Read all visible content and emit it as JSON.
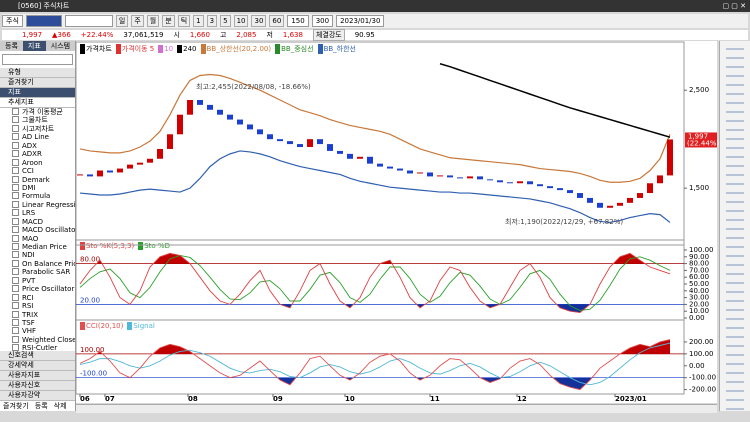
{
  "window": {
    "title": "[0560] 주식차트"
  },
  "toolbar": {
    "market": "주식",
    "periods": [
      "일",
      "주",
      "월",
      "분",
      "틱"
    ],
    "steps": [
      "1",
      "3",
      "5",
      "10",
      "30",
      "60"
    ],
    "count": "150",
    "count2": "300",
    "date": "2023/01/30"
  },
  "quote": {
    "price": "1,997",
    "change": "▲366",
    "rate": "+22.44%",
    "volume": "37,061,519",
    "open_label": "시",
    "open": "1,660",
    "high_label": "고",
    "high": "2,085",
    "low_label": "저",
    "low": "1,638",
    "strength_label": "체결강도",
    "strength": "90.95"
  },
  "left_panel": {
    "tabs": [
      "등록",
      "지표",
      "시스템"
    ],
    "groups_top": [
      "유형",
      "즐겨찾기",
      "지표"
    ],
    "category": "추세지표",
    "items": [
      "가격 이동평균",
      "그물차트",
      "시고저차트",
      "AD Line",
      "ADX",
      "ADXR",
      "Aroon",
      "CCI",
      "Demark",
      "DMI",
      "Formula",
      "Linear Regression",
      "LRS",
      "MACD",
      "MACD Oscillator",
      "MAO",
      "Median Price",
      "NDI",
      "On Balance Price",
      "Parabolic SAR",
      "PVT",
      "Price Oscillator",
      "RCI",
      "RSI",
      "TRIX",
      "TSF",
      "VHF",
      "Weighted Close",
      "RSI-Cutler"
    ],
    "groups_bottom": [
      "신호검색",
      "강세약세",
      "사용자지표",
      "사용자신호",
      "사용자강약"
    ],
    "footer": [
      "즐겨찾기",
      "등록",
      "삭제"
    ]
  },
  "chart_data": [
    {
      "type": "candlestick",
      "ylim": [
        940,
        2890
      ],
      "yticks": [
        {
          "value": 2500,
          "label": "2,500"
        },
        {
          "value": 1500,
          "label": "1,500"
        }
      ],
      "last_rate_label": "(22.44%)",
      "series": [
        {
          "name": "가격차트",
          "color": "#d00000",
          "values": [
            1640,
            1620,
            1680,
            1660,
            1700,
            1740,
            1760,
            1800,
            1900,
            2050,
            2250,
            2400,
            2350,
            2300,
            2250,
            2200,
            2150,
            2100,
            2050,
            2000,
            1980,
            1950,
            1920,
            2000,
            1950,
            1880,
            1850,
            1800,
            1820,
            1750,
            1720,
            1700,
            1680,
            1650,
            1660,
            1620,
            1630,
            1610,
            1600,
            1620,
            1590,
            1580,
            1560,
            1550,
            1570,
            1540,
            1520,
            1500,
            1480,
            1450,
            1400,
            1350,
            1300,
            1320,
            1350,
            1400,
            1450,
            1550,
            1630,
            1997
          ]
        },
        {
          "name": "240",
          "color": "#000000",
          "values": [
            null,
            null,
            null,
            null,
            null,
            null,
            null,
            null,
            null,
            null,
            null,
            null,
            null,
            null,
            null,
            null,
            null,
            null,
            null,
            null,
            null,
            null,
            null,
            null,
            null,
            null,
            null,
            null,
            null,
            null,
            null,
            null,
            null,
            null,
            null,
            null,
            2770,
            2740,
            2705,
            2670,
            2635,
            2600,
            2565,
            2530,
            2495,
            2460,
            2425,
            2390,
            2355,
            2320,
            2290,
            2260,
            2230,
            2200,
            2170,
            2140,
            2110,
            2080,
            2050,
            2020
          ]
        },
        {
          "name": "BB_상한선(20,2.00)",
          "color": "#c8783a",
          "values": [
            1900,
            1880,
            1870,
            1860,
            1860,
            1880,
            1920,
            1980,
            2080,
            2250,
            2450,
            2600,
            2650,
            2660,
            2650,
            2620,
            2580,
            2540,
            2500,
            2450,
            2400,
            2350,
            2300,
            2270,
            2240,
            2200,
            2170,
            2140,
            2120,
            2100,
            2080,
            2050,
            2000,
            1950,
            1900,
            1870,
            1840,
            1810,
            1800,
            1790,
            1780,
            1770,
            1760,
            1750,
            1740,
            1720,
            1700,
            1690,
            1680,
            1670,
            1650,
            1620,
            1580,
            1560,
            1560,
            1570,
            1600,
            1680,
            1800,
            2050
          ]
        },
        {
          "name": "BB_하한선",
          "color": "#2f5fb0",
          "values": [
            1450,
            1440,
            1430,
            1430,
            1440,
            1460,
            1480,
            1490,
            1480,
            1470,
            1460,
            1500,
            1600,
            1720,
            1800,
            1850,
            1880,
            1870,
            1850,
            1820,
            1780,
            1750,
            1720,
            1700,
            1680,
            1660,
            1640,
            1600,
            1570,
            1550,
            1530,
            1510,
            1500,
            1490,
            1480,
            1470,
            1460,
            1460,
            1450,
            1450,
            1440,
            1430,
            1420,
            1410,
            1400,
            1390,
            1370,
            1350,
            1320,
            1290,
            1250,
            1200,
            1160,
            1150,
            1170,
            1200,
            1220,
            1240,
            1230,
            1150
          ]
        }
      ],
      "legend_extra": [
        {
          "name": "가격이동 5",
          "color": "#e03030"
        },
        {
          "name": "10",
          "color": "#d070d0"
        },
        {
          "name": "BB_중심선",
          "color": "#2a8a2a"
        }
      ],
      "annotations": [
        "최고:2,455(2022/08/08, -18.66%)",
        "최저:1,190(2022/12/29, +67.82%)"
      ]
    },
    {
      "type": "line",
      "ylim": [
        0,
        100
      ],
      "yticks": [
        {
          "value": 100,
          "label": "100.00"
        },
        {
          "value": 90,
          "label": "90.00"
        },
        {
          "value": 80,
          "label": "80.00"
        },
        {
          "value": 70,
          "label": "70.00"
        },
        {
          "value": 60,
          "label": "60.00"
        },
        {
          "value": 50,
          "label": "50.00"
        },
        {
          "value": 40,
          "label": "40.00"
        },
        {
          "value": 30,
          "label": "30.00"
        },
        {
          "value": 20,
          "label": "20.00"
        },
        {
          "value": 10,
          "label": "10.00"
        },
        {
          "value": 0,
          "label": "0.00"
        }
      ],
      "levels": [
        {
          "value": 80,
          "label": "80.00"
        },
        {
          "value": 20,
          "label": "20.00"
        }
      ],
      "fill_above": "#c00000",
      "fill_below": "#14309a",
      "series": [
        {
          "name": "Sto %K(5,3,3)",
          "color": "#e04040",
          "values": [
            50,
            70,
            85,
            60,
            30,
            20,
            40,
            75,
            90,
            95,
            92,
            80,
            60,
            40,
            25,
            20,
            35,
            55,
            70,
            40,
            20,
            15,
            40,
            70,
            80,
            50,
            25,
            15,
            30,
            60,
            80,
            85,
            60,
            30,
            15,
            25,
            55,
            75,
            70,
            45,
            25,
            15,
            20,
            45,
            70,
            80,
            60,
            30,
            15,
            10,
            8,
            20,
            50,
            75,
            90,
            95,
            85,
            75,
            70,
            65
          ]
        },
        {
          "name": "Sto %D",
          "color": "#2aa02a",
          "values": [
            45,
            58,
            68,
            72,
            58,
            37,
            30,
            45,
            68,
            87,
            92,
            89,
            77,
            60,
            42,
            28,
            27,
            37,
            53,
            55,
            43,
            25,
            25,
            42,
            63,
            67,
            52,
            30,
            23,
            35,
            57,
            75,
            75,
            58,
            35,
            23,
            32,
            52,
            67,
            63,
            47,
            28,
            20,
            27,
            45,
            65,
            70,
            57,
            35,
            18,
            11,
            13,
            26,
            48,
            72,
            87,
            90,
            85,
            77,
            70
          ]
        }
      ]
    },
    {
      "type": "line",
      "ylim": [
        -220,
        300
      ],
      "yticks": [
        {
          "value": 200,
          "label": "200.00"
        },
        {
          "value": 100,
          "label": "100.00"
        },
        {
          "value": 0,
          "label": "0.00"
        },
        {
          "value": -100,
          "label": "-100.00"
        },
        {
          "value": -200,
          "label": "-200.00"
        }
      ],
      "levels": [
        {
          "value": 100,
          "label": "100.00"
        },
        {
          "value": -100,
          "label": "-100.00"
        }
      ],
      "fill_above": "#c00000",
      "fill_below": "#14309a",
      "xticks": [
        {
          "value": 0,
          "label": "06"
        },
        {
          "value": 2.5,
          "label": "07"
        },
        {
          "value": 10.8,
          "label": "08"
        },
        {
          "value": 19.3,
          "label": "09"
        },
        {
          "value": 26.5,
          "label": "10"
        },
        {
          "value": 35,
          "label": "11"
        },
        {
          "value": 43.7,
          "label": "12"
        },
        {
          "value": 53.5,
          "label": "2023/01"
        }
      ],
      "series": [
        {
          "name": "CCI(20,10)",
          "color": "#e05050",
          "values": [
            20,
            60,
            120,
            40,
            -60,
            -100,
            -20,
            80,
            150,
            180,
            160,
            120,
            60,
            0,
            -60,
            -100,
            -80,
            -20,
            40,
            -40,
            -120,
            -160,
            -60,
            60,
            80,
            0,
            -80,
            -120,
            -60,
            30,
            80,
            100,
            40,
            -60,
            -120,
            -80,
            0,
            60,
            50,
            -20,
            -100,
            -140,
            -110,
            -20,
            40,
            60,
            10,
            -80,
            -150,
            -180,
            -200,
            -120,
            -20,
            40,
            100,
            150,
            180,
            160,
            200,
            220
          ]
        },
        {
          "name": "Signal",
          "color": "#50b8d8",
          "values": [
            10,
            30,
            60,
            60,
            35,
            0,
            -20,
            0,
            40,
            90,
            120,
            130,
            110,
            80,
            30,
            -20,
            -50,
            -60,
            -40,
            -30,
            -50,
            -90,
            -100,
            -60,
            -10,
            10,
            -10,
            -50,
            -70,
            -50,
            -10,
            40,
            60,
            30,
            -20,
            -60,
            -70,
            -40,
            0,
            20,
            -10,
            -60,
            -100,
            -90,
            -50,
            0,
            30,
            0,
            -50,
            -100,
            -140,
            -160,
            -140,
            -90,
            -20,
            50,
            110,
            150,
            170,
            190
          ]
        }
      ]
    }
  ]
}
